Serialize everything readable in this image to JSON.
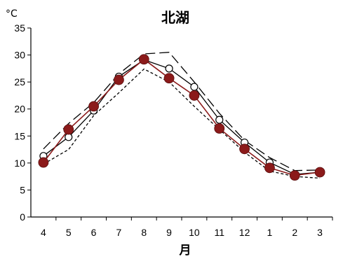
{
  "chart_data": {
    "type": "line",
    "title": "北湖",
    "unit": "°C",
    "xlabel": "月",
    "ylabel": "",
    "ylim": [
      0,
      35
    ],
    "yticks": [
      0,
      5,
      10,
      15,
      20,
      25,
      30,
      35
    ],
    "categories": [
      "4",
      "5",
      "6",
      "7",
      "8",
      "9",
      "10",
      "11",
      "12",
      "1",
      "2",
      "3"
    ],
    "grid": false,
    "legend": "none",
    "series": [
      {
        "style": "long-dash",
        "color": "#000000",
        "values": [
          12.6,
          17.3,
          21.2,
          26.5,
          30.2,
          30.5,
          25.0,
          19.2,
          14.2,
          11.0,
          8.6,
          8.7
        ]
      },
      {
        "style": "short-dash",
        "color": "#000000",
        "values": [
          9.8,
          12.5,
          18.8,
          23.0,
          27.4,
          25.0,
          20.5,
          16.2,
          12.0,
          8.5,
          7.5,
          7.2
        ]
      },
      {
        "style": "solid-open-circle",
        "color": "#000000",
        "values": [
          11.3,
          14.8,
          19.7,
          26.0,
          29.1,
          27.5,
          24.1,
          18.0,
          13.8,
          10.1,
          7.9,
          8.3
        ]
      },
      {
        "style": "solid-filled-circle",
        "color": "#8b1a1a",
        "values": [
          10.1,
          16.2,
          20.5,
          25.4,
          29.2,
          25.7,
          22.5,
          16.4,
          12.6,
          9.1,
          7.7,
          8.3
        ]
      }
    ]
  }
}
